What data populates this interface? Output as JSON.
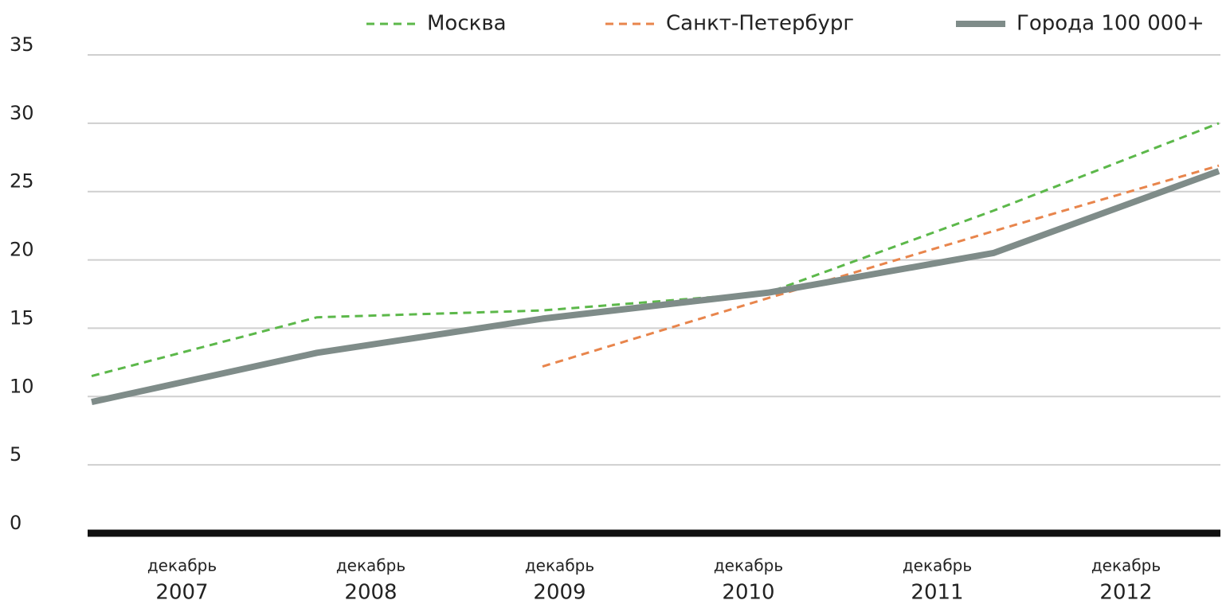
{
  "chart_data": {
    "type": "line",
    "categories": [
      [
        "декабрь",
        "2007"
      ],
      [
        "декабрь",
        "2008"
      ],
      [
        "декабрь",
        "2009"
      ],
      [
        "декабрь",
        "2010"
      ],
      [
        "декабрь",
        "2011"
      ],
      [
        "декабрь",
        "2012"
      ]
    ],
    "series": [
      {
        "name": "Москва",
        "color": "#5cb84a",
        "dash": true,
        "values": [
          11.5,
          15.8,
          16.3,
          17.6,
          23.6,
          30
        ]
      },
      {
        "name": "Санкт-Петербург",
        "color": "#e8854c",
        "dash": true,
        "values": [
          null,
          null,
          12.2,
          17.2,
          22.1,
          26.9
        ]
      },
      {
        "name": "Города 100 000+",
        "color": "#7f8c89",
        "dash": false,
        "values": [
          9.6,
          13.2,
          15.7,
          17.6,
          20.5,
          26.5
        ]
      }
    ],
    "ylim": [
      0,
      35
    ],
    "yticks": [
      0,
      5,
      10,
      15,
      20,
      25,
      30,
      35
    ],
    "grid": true
  }
}
